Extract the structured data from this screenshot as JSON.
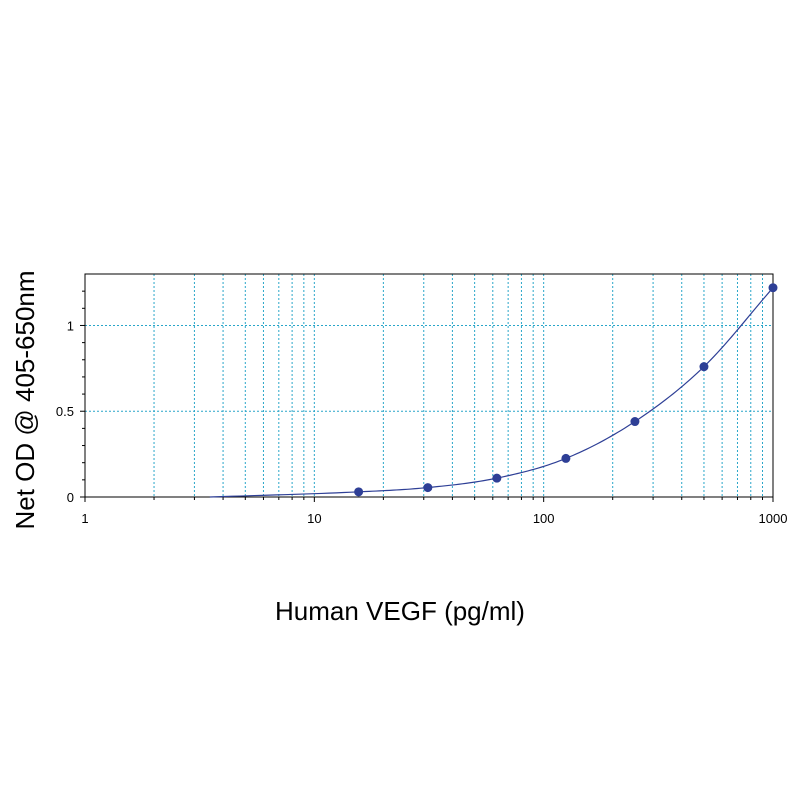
{
  "chart_data": {
    "type": "scatter",
    "title": "",
    "xlabel": "Human VEGF (pg/ml)",
    "ylabel": "Net OD @ 405-650nm",
    "x_scale": "log",
    "xlim": [
      1,
      1000
    ],
    "ylim": [
      0,
      1.3
    ],
    "x_ticks": [
      {
        "value": 1,
        "label": "1"
      },
      {
        "value": 10,
        "label": "10"
      },
      {
        "value": 100,
        "label": "100"
      },
      {
        "value": 1000,
        "label": "1000"
      }
    ],
    "y_ticks": [
      {
        "value": 0,
        "label": "0"
      },
      {
        "value": 0.5,
        "label": "0.5"
      },
      {
        "value": 1,
        "label": "1"
      }
    ],
    "grid": true,
    "colors": {
      "series": "#2e3f96",
      "grid": "#2aa6c9",
      "axis": "#000000"
    },
    "series": [
      {
        "points": [
          {
            "x": 15.6,
            "y": 0.03
          },
          {
            "x": 31.25,
            "y": 0.055
          },
          {
            "x": 62.5,
            "y": 0.11
          },
          {
            "x": 125,
            "y": 0.225
          },
          {
            "x": 250,
            "y": 0.44
          },
          {
            "x": 500,
            "y": 0.76
          },
          {
            "x": 1000,
            "y": 1.22
          }
        ],
        "fit_curve": {
          "type": "smooth",
          "x_start": 3.5,
          "y_start": 0.0
        }
      }
    ]
  }
}
